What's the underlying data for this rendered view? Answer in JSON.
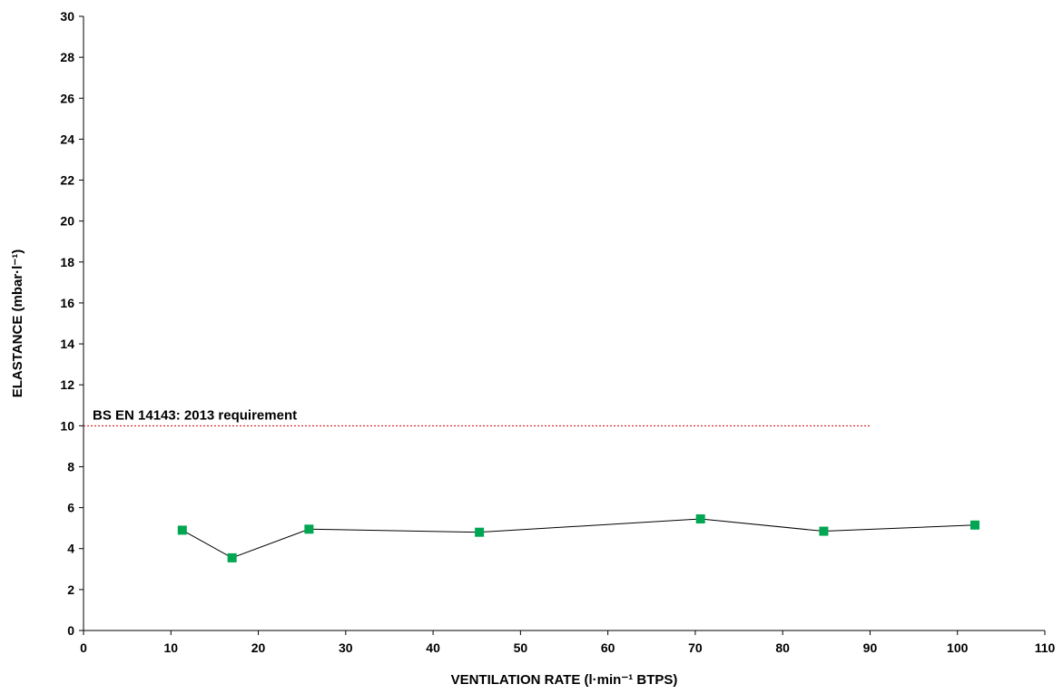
{
  "chart_data": {
    "type": "line",
    "xlabel": "VENTILATION RATE (l·min⁻¹ BTPS)",
    "ylabel": "ELASTANCE  (mbar·l⁻¹)",
    "xlim": [
      0,
      110
    ],
    "ylim": [
      0,
      30
    ],
    "xticks": [
      0,
      10,
      20,
      30,
      40,
      50,
      60,
      70,
      80,
      90,
      100,
      110
    ],
    "yticks": [
      0,
      2,
      4,
      6,
      8,
      10,
      12,
      14,
      16,
      18,
      20,
      22,
      24,
      26,
      28,
      30
    ],
    "grid": false,
    "series": [
      {
        "x": [
          11.3,
          17.0,
          25.8,
          45.3,
          70.6,
          84.7,
          102.0
        ],
        "y": [
          4.9,
          3.55,
          4.95,
          4.8,
          5.45,
          4.85,
          5.15
        ],
        "line_color": "#000000",
        "marker": "square",
        "marker_color": "#00a651"
      }
    ],
    "reference_line": {
      "label": "BS EN 14143:  2013 requirement",
      "y": 10,
      "x_range": [
        0,
        90
      ],
      "color": "#d00000",
      "style": "dotted"
    }
  }
}
